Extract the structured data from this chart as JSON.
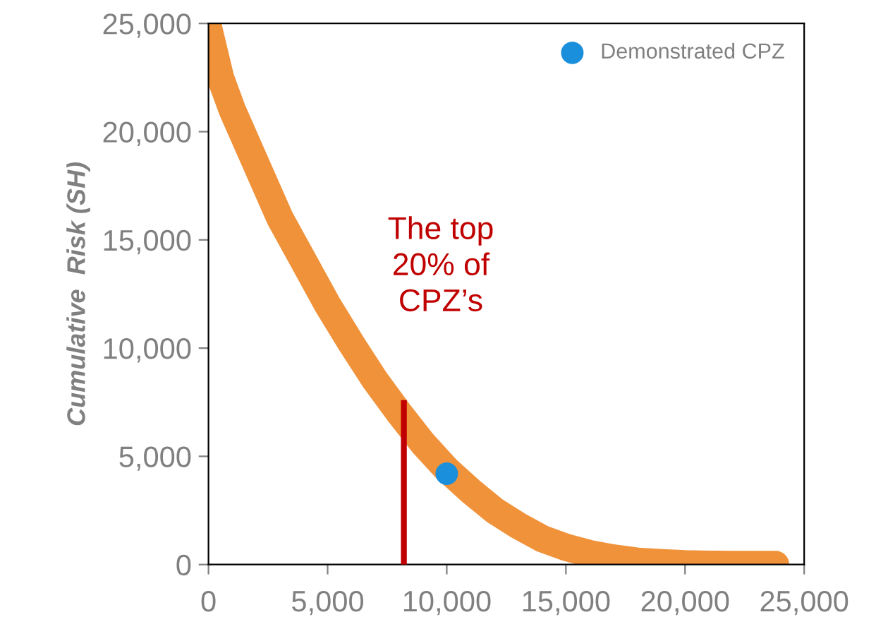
{
  "chart_data": {
    "type": "line",
    "ylabel": "Cumulative  Risk (SH)",
    "xlim": [
      0,
      25000
    ],
    "ylim": [
      0,
      25000
    ],
    "xticks": [
      0,
      {
        "value": 5000,
        "label": "5,000"
      },
      {
        "value": 10000,
        "label": "10,000"
      },
      {
        "value": 15000,
        "label": "15,000"
      },
      {
        "value": 20000,
        "label": "20,000"
      },
      {
        "value": 25000,
        "label": "25,000"
      }
    ],
    "yticks": [
      0,
      {
        "value": 5000,
        "label": "5,000"
      },
      {
        "value": 10000,
        "label": "10,000"
      },
      {
        "value": 15000,
        "label": "15,000"
      },
      {
        "value": 20000,
        "label": "20,000"
      },
      {
        "value": 25000,
        "label": "25,000"
      }
    ],
    "series": [
      {
        "color": "#f0923a",
        "x": [
          0,
          500,
          1000,
          2000,
          3000,
          4000,
          5000,
          6000,
          7000,
          8000,
          9000,
          10000,
          11000,
          12000,
          13000,
          14000,
          15000,
          16000,
          17000,
          18000,
          19000,
          20000,
          21000,
          22000,
          23000,
          23800
        ],
        "values": [
          24800,
          22500,
          21000,
          18500,
          16000,
          14000,
          12000,
          10200,
          8500,
          7000,
          5600,
          4400,
          3400,
          2500,
          1800,
          1200,
          800,
          500,
          300,
          150,
          80,
          30,
          10,
          0,
          0,
          0
        ]
      },
      {
        "color": "#c00000",
        "x": [
          8200,
          8200
        ],
        "values": [
          0,
          7600
        ]
      },
      {
        "type": "scatter",
        "name": "Demonstrated CPZ",
        "color": "#1a8fdc",
        "x": [
          10000
        ],
        "values": [
          4200
        ]
      }
    ],
    "annotations": [
      "The top\n20% of\nCPZ’s"
    ],
    "legend": "top right",
    "grid": false,
    "line_style": "solid"
  }
}
